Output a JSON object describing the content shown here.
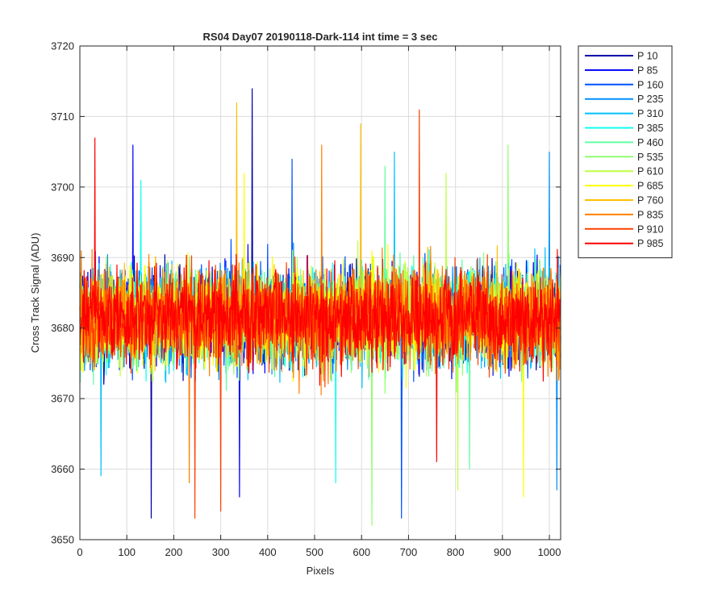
{
  "chart_data": {
    "type": "line",
    "title": "RS04 Day07 20190118-Dark-114 int time = 3 sec",
    "xlabel": "Pixels",
    "ylabel": "Cross Track Signal (ADU)",
    "xlim": [
      0,
      1024
    ],
    "ylim": [
      3650,
      3720
    ],
    "x_ticks": [
      0,
      100,
      200,
      300,
      400,
      500,
      600,
      700,
      800,
      900,
      1000
    ],
    "y_ticks": [
      3650,
      3660,
      3670,
      3680,
      3690,
      3700,
      3710,
      3720
    ],
    "grid": true,
    "legend_position": "outside-right",
    "series": [
      {
        "name": "P 10",
        "color": "#0000a8",
        "mean": 3681.5,
        "extremes": [
          [
            367,
            3714
          ],
          [
            152,
            3653
          ]
        ]
      },
      {
        "name": "P 85",
        "color": "#0000ff",
        "mean": 3681.5,
        "extremes": [
          [
            113,
            3706
          ],
          [
            340,
            3656
          ]
        ]
      },
      {
        "name": "P 160",
        "color": "#0050ff",
        "mean": 3681.5,
        "extremes": [
          [
            452,
            3704
          ],
          [
            685,
            3653
          ]
        ]
      },
      {
        "name": "P 235",
        "color": "#0090ff",
        "mean": 3681.5,
        "extremes": [
          [
            1000,
            3705
          ],
          [
            1016,
            3657
          ]
        ]
      },
      {
        "name": "P 310",
        "color": "#00c0ff",
        "mean": 3681.5,
        "extremes": [
          [
            670,
            3705
          ],
          [
            45,
            3659
          ]
        ]
      },
      {
        "name": "P 385",
        "color": "#10ffef",
        "mean": 3681.5,
        "extremes": [
          [
            130,
            3701
          ],
          [
            545,
            3658
          ]
        ]
      },
      {
        "name": "P 460",
        "color": "#60ffa0",
        "mean": 3681.5,
        "extremes": [
          [
            650,
            3703
          ],
          [
            830,
            3660
          ]
        ]
      },
      {
        "name": "P 535",
        "color": "#90ff70",
        "mean": 3681.5,
        "extremes": [
          [
            912,
            3706
          ],
          [
            622,
            3652
          ]
        ]
      },
      {
        "name": "P 610",
        "color": "#c0ff40",
        "mean": 3681.5,
        "extremes": [
          [
            780,
            3702
          ],
          [
            805,
            3657
          ]
        ]
      },
      {
        "name": "P 685",
        "color": "#ffff00",
        "mean": 3681.5,
        "extremes": [
          [
            350,
            3702
          ],
          [
            945,
            3656
          ]
        ]
      },
      {
        "name": "P 760",
        "color": "#ffc000",
        "mean": 3681.5,
        "extremes": [
          [
            334,
            3712
          ],
          [
            598,
            3709
          ]
        ]
      },
      {
        "name": "P 835",
        "color": "#ff8000",
        "mean": 3681.5,
        "extremes": [
          [
            515,
            3706
          ],
          [
            233,
            3658
          ]
        ]
      },
      {
        "name": "P 910",
        "color": "#ff4000",
        "mean": 3681.5,
        "extremes": [
          [
            723,
            3711
          ],
          [
            245,
            3653
          ],
          [
            300,
            3654
          ]
        ]
      },
      {
        "name": "P 985",
        "color": "#ff0000",
        "mean": 3681.5,
        "extremes": [
          [
            32,
            3707
          ],
          [
            760,
            3661
          ]
        ]
      }
    ]
  }
}
